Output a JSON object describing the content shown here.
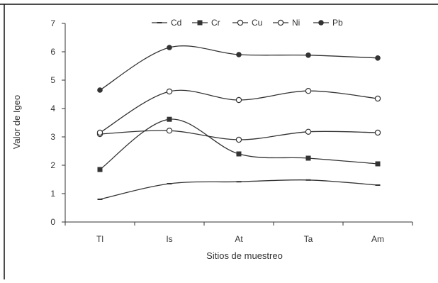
{
  "chart_data": {
    "type": "line",
    "title": "",
    "xlabel": "Sitios de muestreo",
    "ylabel": "Valor de Igeo",
    "categories": [
      "Tl",
      "Is",
      "At",
      "Ta",
      "Am"
    ],
    "ylim": [
      0,
      7
    ],
    "yticks": [
      0,
      1,
      2,
      3,
      4,
      5,
      6,
      7
    ],
    "grid": false,
    "legend_position": "top",
    "series": [
      {
        "name": "Cd",
        "marker": "dash",
        "values": [
          0.8,
          1.35,
          1.42,
          1.48,
          1.3
        ]
      },
      {
        "name": "Cr",
        "marker": "square",
        "values": [
          1.85,
          3.62,
          2.4,
          2.25,
          2.05
        ]
      },
      {
        "name": "Cu",
        "marker": "circle-open",
        "values": [
          3.1,
          3.22,
          2.9,
          3.18,
          3.15
        ]
      },
      {
        "name": "Ni",
        "marker": "circle-open",
        "values": [
          3.15,
          4.6,
          4.3,
          4.62,
          4.35
        ]
      },
      {
        "name": "Pb",
        "marker": "circle-filled",
        "values": [
          4.65,
          6.15,
          5.9,
          5.88,
          5.78
        ]
      }
    ],
    "colors": {
      "line": "#333333",
      "axis": "#333333",
      "text": "#333333"
    }
  }
}
